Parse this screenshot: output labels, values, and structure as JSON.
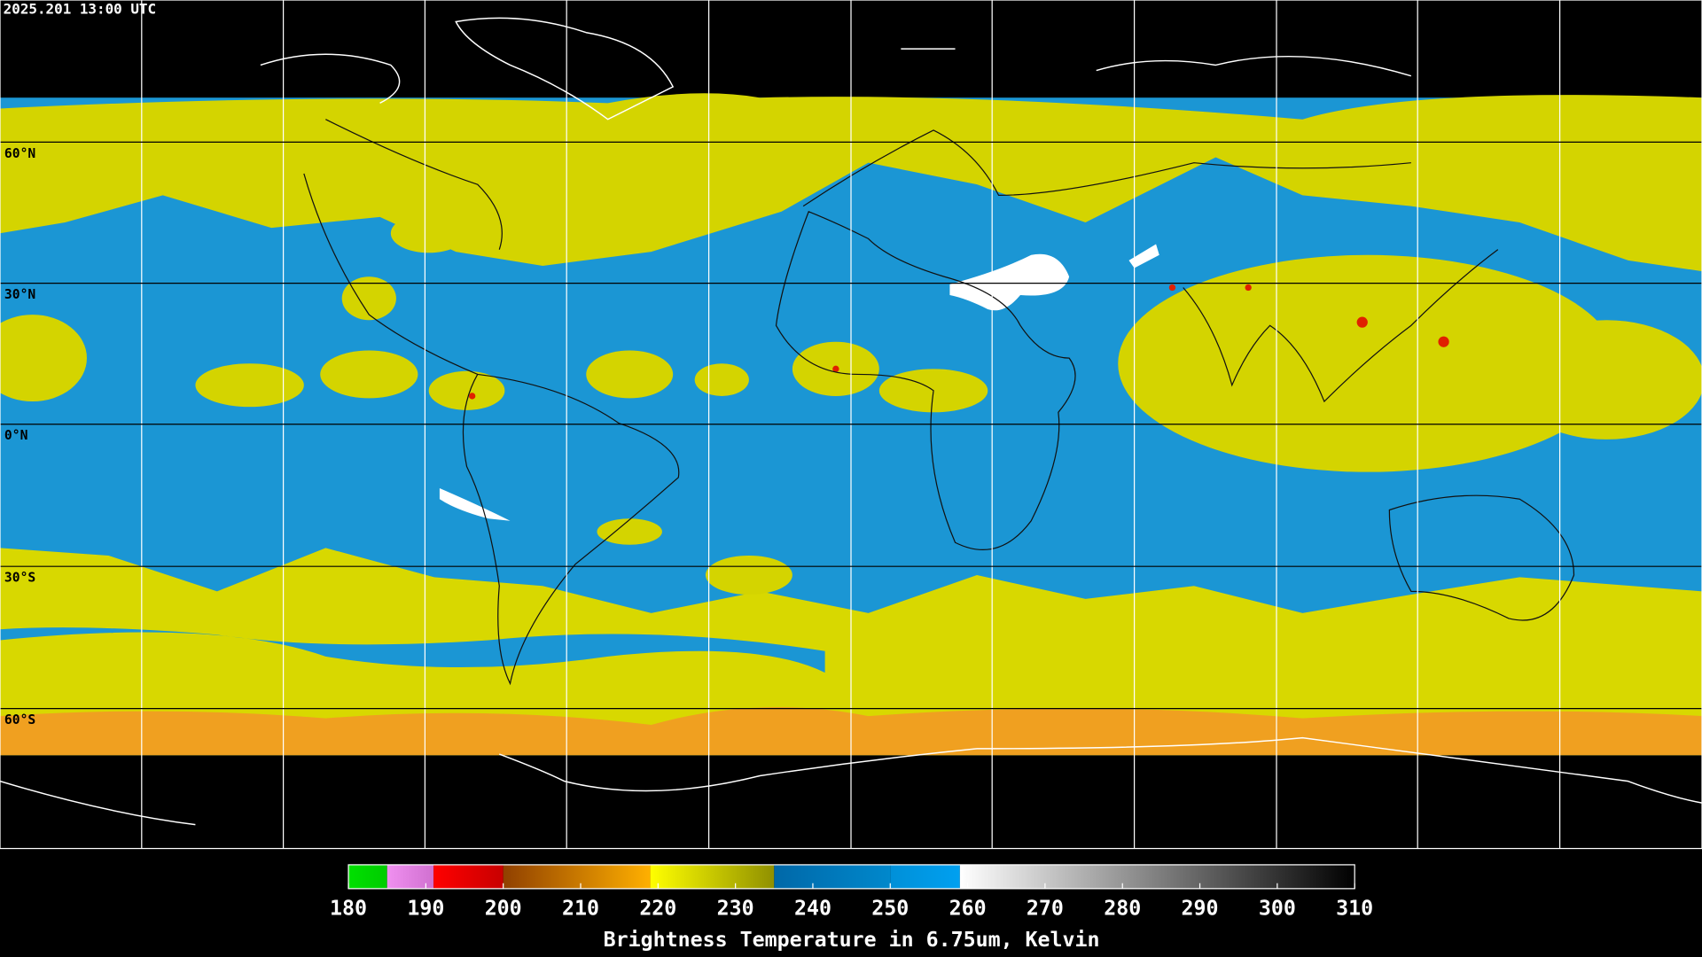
{
  "map": {
    "timestamp": "2025.201 13:00 UTC",
    "latitude_labels": [
      "60°N",
      "30°N",
      "0°N",
      "30°S",
      "60°S"
    ]
  },
  "colorbar": {
    "title": "Brightness Temperature in 6.75um, Kelvin",
    "range": [
      180,
      310
    ],
    "ticks": [
      180,
      190,
      200,
      210,
      220,
      230,
      240,
      250,
      260,
      270,
      280,
      290,
      300,
      310
    ],
    "segments": [
      {
        "from": 180,
        "to": 185,
        "color_start": "#00e000",
        "color_end": "#00cc00"
      },
      {
        "from": 185,
        "to": 191,
        "color_start": "#f090f0",
        "color_end": "#d070d0"
      },
      {
        "from": 191,
        "to": 200,
        "color_start": "#ff0000",
        "color_end": "#c80000"
      },
      {
        "from": 200,
        "to": 219,
        "color_start": "#904000",
        "color_end": "#ffb000"
      },
      {
        "from": 219,
        "to": 235,
        "color_start": "#ffff00",
        "color_end": "#909000"
      },
      {
        "from": 235,
        "to": 250,
        "color_start": "#0068a8",
        "color_end": "#0088cc"
      },
      {
        "from": 250,
        "to": 259,
        "color_start": "#0090d8",
        "color_end": "#00a0f0"
      },
      {
        "from": 259,
        "to": 310,
        "color_start": "#ffffff",
        "color_end": "#000000"
      }
    ]
  }
}
